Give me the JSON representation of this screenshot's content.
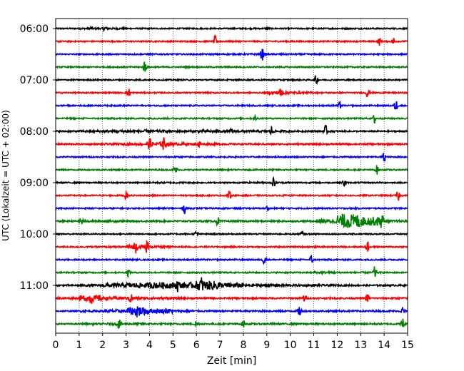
{
  "chart_data": {
    "type": "line",
    "title": "",
    "xlabel": "Zeit  [min]",
    "ylabel": "UTC (Lokalzeit = UTC + 02:00)",
    "xlim": [
      0,
      15
    ],
    "x_ticks": [
      "0",
      "1",
      "2",
      "3",
      "4",
      "5",
      "6",
      "7",
      "8",
      "9",
      "10",
      "11",
      "12",
      "13",
      "14",
      "15"
    ],
    "y_tick_labels": [
      "06:00",
      "07:00",
      "08:00",
      "09:00",
      "10:00",
      "11:00"
    ],
    "y_tick_trace_index": [
      0,
      4,
      8,
      12,
      16,
      20
    ],
    "grid": "vertical dotted at each minute",
    "trace_count": 24,
    "trace_interval_min": 15,
    "color_cycle": [
      "#000000",
      "#ff0000",
      "#0000ff",
      "#008000"
    ],
    "series": [
      {
        "start": "06:00",
        "color": "#000000",
        "amplitude": [
          0.05,
          0.06,
          0.07,
          0.05,
          0.05,
          0.05,
          0.05,
          0.05,
          0.05,
          0.05,
          0.05,
          0.05,
          0.05,
          0.05,
          0.05
        ],
        "spikes": [
          [
            1.5,
            0.15
          ],
          [
            2.1,
            0.18
          ],
          [
            9.0,
            0.12
          ]
        ]
      },
      {
        "start": "06:15",
        "color": "#ff0000",
        "amplitude": [
          0.05,
          0.05,
          0.05,
          0.05,
          0.05,
          0.05,
          0.05,
          0.05,
          0.05,
          0.05,
          0.05,
          0.05,
          0.05,
          0.05,
          0.05
        ],
        "spikes": [
          [
            6.8,
            0.45
          ],
          [
            13.8,
            0.3
          ],
          [
            14.4,
            0.35
          ]
        ]
      },
      {
        "start": "06:30",
        "color": "#0000ff",
        "amplitude": [
          0.05,
          0.05,
          0.05,
          0.05,
          0.05,
          0.05,
          0.05,
          0.05,
          0.06,
          0.06,
          0.05,
          0.05,
          0.05,
          0.05,
          0.05
        ],
        "spikes": [
          [
            8.8,
            0.5
          ]
        ]
      },
      {
        "start": "06:45",
        "color": "#008000",
        "amplitude": [
          0.05,
          0.05,
          0.05,
          0.05,
          0.05,
          0.05,
          0.05,
          0.05,
          0.05,
          0.05,
          0.05,
          0.05,
          0.05,
          0.05,
          0.05
        ],
        "spikes": [
          [
            3.8,
            0.5
          ]
        ]
      },
      {
        "start": "07:00",
        "color": "#000000",
        "amplitude": [
          0.05,
          0.05,
          0.05,
          0.05,
          0.05,
          0.05,
          0.05,
          0.05,
          0.05,
          0.05,
          0.05,
          0.05,
          0.05,
          0.05,
          0.05
        ],
        "spikes": [
          [
            11.1,
            0.4
          ]
        ]
      },
      {
        "start": "07:15",
        "color": "#ff0000",
        "amplitude": [
          0.05,
          0.05,
          0.05,
          0.05,
          0.05,
          0.05,
          0.05,
          0.05,
          0.05,
          0.12,
          0.08,
          0.05,
          0.05,
          0.05,
          0.05
        ],
        "spikes": [
          [
            3.1,
            0.4
          ],
          [
            9.6,
            0.35
          ],
          [
            13.3,
            0.4
          ]
        ]
      },
      {
        "start": "07:30",
        "color": "#0000ff",
        "amplitude": [
          0.05,
          0.05,
          0.05,
          0.05,
          0.05,
          0.05,
          0.05,
          0.05,
          0.05,
          0.05,
          0.05,
          0.05,
          0.05,
          0.05,
          0.05
        ],
        "spikes": [
          [
            12.1,
            0.25
          ],
          [
            14.5,
            0.5
          ]
        ]
      },
      {
        "start": "07:45",
        "color": "#008000",
        "amplitude": [
          0.05,
          0.05,
          0.05,
          0.05,
          0.05,
          0.05,
          0.05,
          0.05,
          0.05,
          0.05,
          0.05,
          0.05,
          0.05,
          0.05,
          0.05
        ],
        "spikes": [
          [
            8.5,
            0.2
          ],
          [
            13.6,
            0.45
          ]
        ]
      },
      {
        "start": "08:00",
        "color": "#000000",
        "amplitude": [
          0.06,
          0.08,
          0.1,
          0.12,
          0.1,
          0.08,
          0.1,
          0.08,
          0.08,
          0.08,
          0.06,
          0.06,
          0.05,
          0.05,
          0.05
        ],
        "spikes": [
          [
            9.2,
            0.4
          ],
          [
            11.5,
            0.45
          ],
          [
            7.5,
            0.2
          ]
        ]
      },
      {
        "start": "08:15",
        "color": "#ff0000",
        "amplitude": [
          0.06,
          0.06,
          0.08,
          0.1,
          0.14,
          0.1,
          0.08,
          0.06,
          0.06,
          0.06,
          0.06,
          0.06,
          0.06,
          0.06,
          0.06
        ],
        "spikes": [
          [
            4.0,
            0.4
          ],
          [
            4.6,
            0.45
          ],
          [
            6.1,
            0.3
          ]
        ]
      },
      {
        "start": "08:30",
        "color": "#0000ff",
        "amplitude": [
          0.05,
          0.05,
          0.05,
          0.05,
          0.05,
          0.05,
          0.05,
          0.05,
          0.05,
          0.05,
          0.05,
          0.05,
          0.05,
          0.05,
          0.05
        ],
        "spikes": [
          [
            14.0,
            0.4
          ]
        ]
      },
      {
        "start": "08:45",
        "color": "#008000",
        "amplitude": [
          0.05,
          0.05,
          0.05,
          0.05,
          0.05,
          0.05,
          0.05,
          0.05,
          0.05,
          0.05,
          0.05,
          0.05,
          0.05,
          0.05,
          0.05
        ],
        "spikes": [
          [
            5.1,
            0.45
          ],
          [
            13.7,
            0.35
          ]
        ]
      },
      {
        "start": "09:00",
        "color": "#000000",
        "amplitude": [
          0.05,
          0.05,
          0.05,
          0.05,
          0.06,
          0.06,
          0.05,
          0.05,
          0.06,
          0.06,
          0.05,
          0.05,
          0.05,
          0.05,
          0.05
        ],
        "spikes": [
          [
            9.3,
            0.4
          ],
          [
            12.3,
            0.3
          ]
        ]
      },
      {
        "start": "09:15",
        "color": "#ff0000",
        "amplitude": [
          0.05,
          0.05,
          0.05,
          0.05,
          0.05,
          0.05,
          0.05,
          0.05,
          0.05,
          0.05,
          0.05,
          0.05,
          0.05,
          0.05,
          0.05
        ],
        "spikes": [
          [
            3.0,
            0.3
          ],
          [
            7.4,
            0.35
          ],
          [
            14.6,
            0.45
          ]
        ]
      },
      {
        "start": "09:30",
        "color": "#0000ff",
        "amplitude": [
          0.05,
          0.05,
          0.05,
          0.05,
          0.05,
          0.05,
          0.05,
          0.05,
          0.05,
          0.05,
          0.05,
          0.05,
          0.05,
          0.05,
          0.05
        ],
        "spikes": [
          [
            5.5,
            0.4
          ],
          [
            9.0,
            0.15
          ]
        ]
      },
      {
        "start": "09:45",
        "color": "#008000",
        "amplitude": [
          0.06,
          0.08,
          0.08,
          0.06,
          0.06,
          0.06,
          0.06,
          0.06,
          0.06,
          0.06,
          0.06,
          0.15,
          0.55,
          0.35,
          0.08
        ],
        "spikes": [
          [
            1.1,
            0.3
          ],
          [
            6.9,
            0.35
          ],
          [
            13.9,
            0.3
          ]
        ]
      },
      {
        "start": "10:00",
        "color": "#000000",
        "amplitude": [
          0.05,
          0.05,
          0.05,
          0.05,
          0.05,
          0.05,
          0.05,
          0.05,
          0.05,
          0.05,
          0.05,
          0.05,
          0.05,
          0.05,
          0.05
        ],
        "spikes": [
          [
            6.0,
            0.25
          ],
          [
            10.5,
            0.2
          ]
        ]
      },
      {
        "start": "10:15",
        "color": "#ff0000",
        "amplitude": [
          0.05,
          0.05,
          0.06,
          0.15,
          0.08,
          0.05,
          0.05,
          0.05,
          0.05,
          0.05,
          0.05,
          0.05,
          0.05,
          0.05,
          0.05
        ],
        "spikes": [
          [
            3.4,
            0.4
          ],
          [
            3.9,
            0.45
          ],
          [
            13.3,
            0.4
          ]
        ]
      },
      {
        "start": "10:30",
        "color": "#0000ff",
        "amplitude": [
          0.05,
          0.05,
          0.05,
          0.05,
          0.05,
          0.05,
          0.05,
          0.05,
          0.05,
          0.05,
          0.05,
          0.05,
          0.05,
          0.05,
          0.05
        ],
        "spikes": [
          [
            8.9,
            0.45
          ],
          [
            10.9,
            0.35
          ]
        ]
      },
      {
        "start": "10:45",
        "color": "#008000",
        "amplitude": [
          0.05,
          0.05,
          0.05,
          0.05,
          0.05,
          0.05,
          0.05,
          0.05,
          0.05,
          0.05,
          0.05,
          0.08,
          0.06,
          0.06,
          0.05
        ],
        "spikes": [
          [
            3.1,
            0.3
          ],
          [
            13.6,
            0.45
          ]
        ]
      },
      {
        "start": "11:00",
        "color": "#000000",
        "amplitude": [
          0.06,
          0.08,
          0.15,
          0.2,
          0.25,
          0.22,
          0.35,
          0.2,
          0.12,
          0.1,
          0.08,
          0.08,
          0.06,
          0.06,
          0.06
        ],
        "spikes": [
          [
            5.2,
            0.35
          ],
          [
            6.2,
            0.4
          ]
        ]
      },
      {
        "start": "11:15",
        "color": "#ff0000",
        "amplitude": [
          0.08,
          0.22,
          0.12,
          0.1,
          0.08,
          0.07,
          0.06,
          0.06,
          0.06,
          0.06,
          0.06,
          0.06,
          0.06,
          0.06,
          0.06
        ],
        "spikes": [
          [
            1.5,
            0.35
          ],
          [
            3.2,
            0.4
          ],
          [
            10.6,
            0.3
          ],
          [
            13.3,
            0.35
          ]
        ]
      },
      {
        "start": "11:30",
        "color": "#0000ff",
        "amplitude": [
          0.05,
          0.08,
          0.12,
          0.3,
          0.18,
          0.08,
          0.06,
          0.06,
          0.06,
          0.06,
          0.06,
          0.06,
          0.06,
          0.06,
          0.06
        ],
        "spikes": [
          [
            3.5,
            0.45
          ],
          [
            10.4,
            0.45
          ],
          [
            14.8,
            0.35
          ]
        ]
      },
      {
        "start": "11:45",
        "color": "#008000",
        "amplitude": [
          0.05,
          0.06,
          0.08,
          0.07,
          0.06,
          0.06,
          0.06,
          0.06,
          0.06,
          0.06,
          0.06,
          0.06,
          0.06,
          0.06,
          0.06
        ],
        "spikes": [
          [
            2.7,
            0.4
          ],
          [
            6.0,
            0.3
          ],
          [
            8.0,
            0.3
          ],
          [
            14.8,
            0.45
          ]
        ]
      }
    ]
  }
}
